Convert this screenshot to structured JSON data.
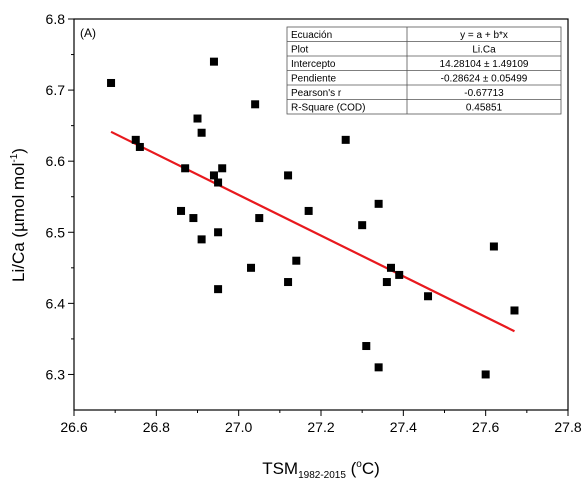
{
  "chart_data": {
    "type": "scatter",
    "panel_label": "(A)",
    "xlabel": {
      "main": "TSM",
      "sub": "1982-2015",
      "unit_open": " (",
      "unit_sup": "o",
      "unit_close": "C)"
    },
    "ylabel": {
      "main": "Li/Ca (",
      "mu": "µ",
      "unit": "mol mol",
      "sup": "-1",
      "close": ")"
    },
    "xlim": [
      26.6,
      27.8
    ],
    "ylim": [
      6.25,
      6.8
    ],
    "xticks": [
      26.6,
      26.8,
      27.0,
      27.2,
      27.4,
      27.6,
      27.8
    ],
    "yticks": [
      6.3,
      6.4,
      6.5,
      6.6,
      6.7,
      6.8
    ],
    "x_tick_labels": [
      "26.6",
      "26.8",
      "27.0",
      "27.2",
      "27.4",
      "27.6",
      "27.8"
    ],
    "y_tick_labels": [
      "6.3",
      "6.4",
      "6.5",
      "6.6",
      "6.7",
      "6.8"
    ],
    "grid": false,
    "marker_color": "#000000",
    "fit_color": "#e8191e",
    "points": [
      {
        "x": 26.69,
        "y": 6.71
      },
      {
        "x": 26.75,
        "y": 6.63
      },
      {
        "x": 26.76,
        "y": 6.62
      },
      {
        "x": 26.86,
        "y": 6.53
      },
      {
        "x": 26.87,
        "y": 6.59
      },
      {
        "x": 26.89,
        "y": 6.52
      },
      {
        "x": 26.9,
        "y": 6.66
      },
      {
        "x": 26.91,
        "y": 6.64
      },
      {
        "x": 26.91,
        "y": 6.49
      },
      {
        "x": 26.94,
        "y": 6.74
      },
      {
        "x": 26.94,
        "y": 6.58
      },
      {
        "x": 26.95,
        "y": 6.57
      },
      {
        "x": 26.95,
        "y": 6.5
      },
      {
        "x": 26.95,
        "y": 6.42
      },
      {
        "x": 26.96,
        "y": 6.59
      },
      {
        "x": 27.03,
        "y": 6.45
      },
      {
        "x": 27.04,
        "y": 6.68
      },
      {
        "x": 27.05,
        "y": 6.52
      },
      {
        "x": 27.12,
        "y": 6.58
      },
      {
        "x": 27.12,
        "y": 6.43
      },
      {
        "x": 27.14,
        "y": 6.46
      },
      {
        "x": 27.17,
        "y": 6.53
      },
      {
        "x": 27.26,
        "y": 6.63
      },
      {
        "x": 27.3,
        "y": 6.51
      },
      {
        "x": 27.31,
        "y": 6.34
      },
      {
        "x": 27.34,
        "y": 6.54
      },
      {
        "x": 27.34,
        "y": 6.31
      },
      {
        "x": 27.36,
        "y": 6.43
      },
      {
        "x": 27.37,
        "y": 6.45
      },
      {
        "x": 27.39,
        "y": 6.44
      },
      {
        "x": 27.46,
        "y": 6.41
      },
      {
        "x": 27.6,
        "y": 6.3
      },
      {
        "x": 27.62,
        "y": 6.48
      },
      {
        "x": 27.67,
        "y": 6.39
      }
    ],
    "fit": {
      "intercept": 14.28104,
      "slope": -0.28624,
      "x_range": [
        26.69,
        27.67
      ]
    },
    "stats_table": [
      [
        "Ecuación",
        "y = a + b*x"
      ],
      [
        "Plot",
        "Li.Ca"
      ],
      [
        "Intercepto",
        "14.28104 ± 1.49109"
      ],
      [
        "Pendiente",
        "-0.28624 ± 0.05499"
      ],
      [
        "Pearson's r",
        "-0.67713"
      ],
      [
        "R-Square (COD)",
        "0.45851"
      ]
    ]
  }
}
